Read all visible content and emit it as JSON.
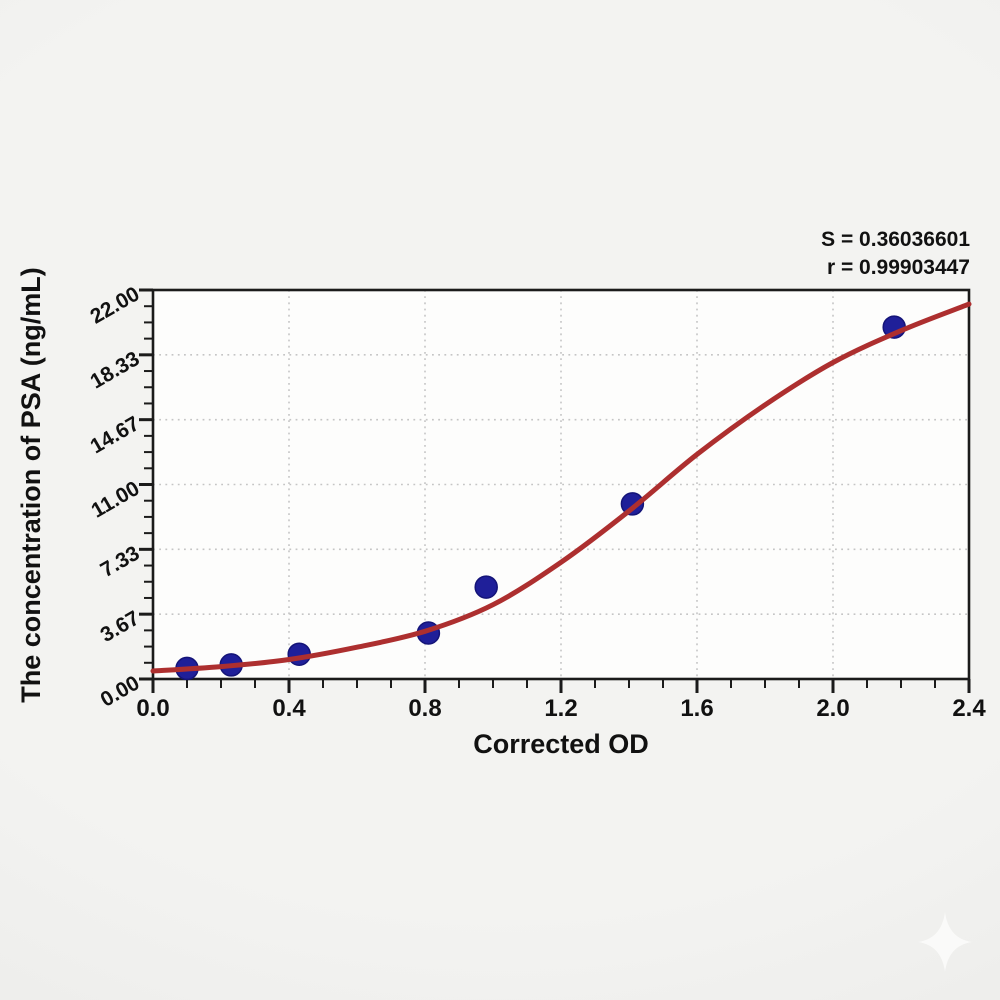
{
  "page": {
    "background_color": "#efefed",
    "watermark_icon": "sparkle-icon"
  },
  "chart_data": {
    "type": "scatter",
    "title": "",
    "xlabel": "Corrected OD",
    "ylabel": "The concentration of PSA (ng/mL)",
    "xlim": [
      0.0,
      2.4
    ],
    "ylim": [
      0.0,
      22.0
    ],
    "grid": "dotted-major",
    "legend_position": "none",
    "x_tick_labels": [
      "0.0",
      "0.4",
      "0.8",
      "1.2",
      "1.6",
      "2.0",
      "2.4"
    ],
    "x_tick_values": [
      0.0,
      0.4,
      0.8,
      1.2,
      1.6,
      2.0,
      2.4
    ],
    "x_minor_tick_step": 0.1,
    "y_tick_labels": [
      "0.00",
      "3.67",
      "7.33",
      "11.00",
      "14.67",
      "18.33",
      "22.00"
    ],
    "y_tick_values": [
      0.0,
      3.6667,
      7.3333,
      11.0,
      14.6667,
      18.3333,
      22.0
    ],
    "y_minor_ticks_per_major": 4,
    "stats": {
      "s_label": "S = 0.36036601",
      "r_label": "r = 0.99903447"
    },
    "series": [
      {
        "name": "standard-points",
        "type": "scatter",
        "x": [
          0.1,
          0.23,
          0.43,
          0.81,
          0.98,
          1.41,
          2.18
        ],
        "y": [
          0.6,
          0.8,
          1.4,
          2.6,
          5.2,
          9.9,
          19.9
        ]
      },
      {
        "name": "fitted-curve",
        "type": "line",
        "x": [
          0.0,
          0.2,
          0.4,
          0.6,
          0.8,
          1.0,
          1.2,
          1.4,
          1.6,
          1.8,
          2.0,
          2.2,
          2.4
        ],
        "y": [
          0.45,
          0.7,
          1.1,
          1.8,
          2.7,
          4.2,
          6.6,
          9.5,
          12.7,
          15.5,
          17.9,
          19.7,
          21.2
        ]
      }
    ],
    "colors": {
      "curve": "#AD2F2F",
      "point": "#1F1F99",
      "point_edge": "#141478",
      "grid": "#c5c5c5",
      "axis": "#1b1b1b",
      "text": "#111111",
      "plot_background": "#fdfdfc"
    }
  }
}
